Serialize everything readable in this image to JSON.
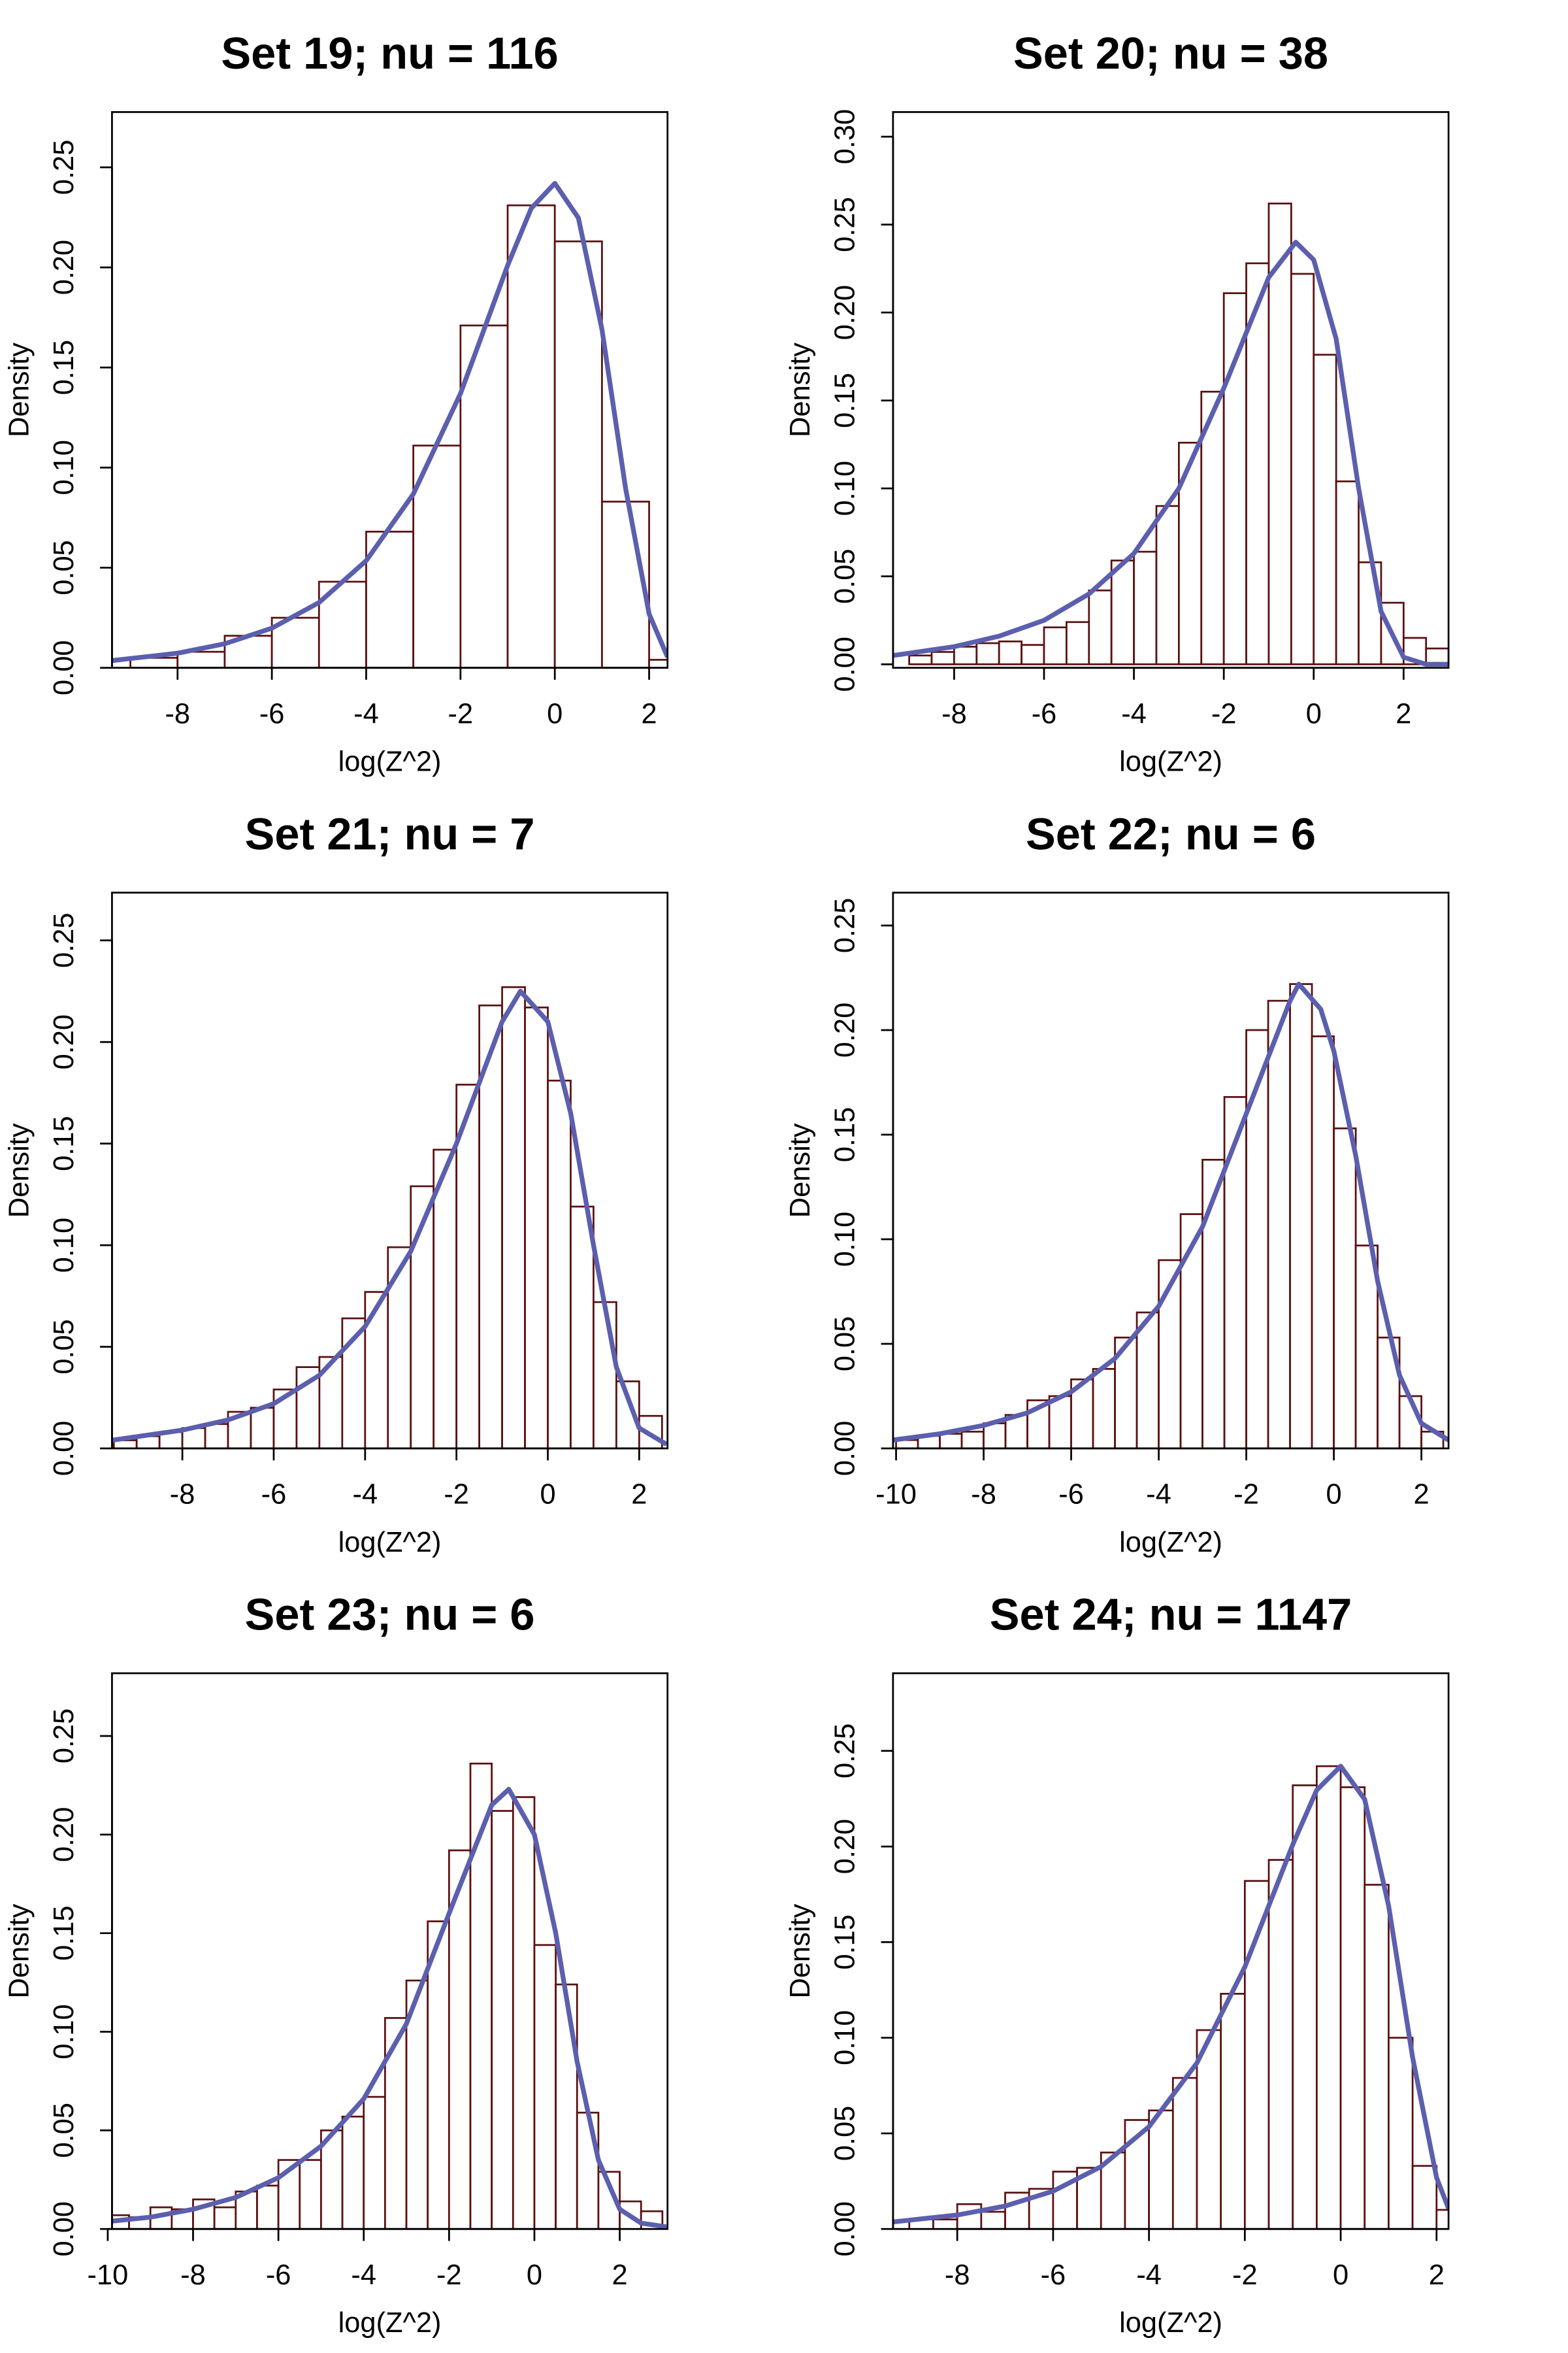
{
  "chart_data": [
    {
      "type": "histogram",
      "title": "Set 19; nu = 116",
      "xlabel": "log(Z^2)",
      "ylabel": "Density",
      "bins": [
        -9,
        -8,
        -7,
        -6,
        -5,
        -4,
        -3,
        -2,
        -1,
        0,
        1,
        2,
        3
      ],
      "counts": [
        0.005,
        0.008,
        0.016,
        0.025,
        0.043,
        0.068,
        0.111,
        0.171,
        0.231,
        0.213,
        0.083,
        0.004
      ],
      "curve": {
        "x": [
          -9.39,
          -8,
          -7,
          -6,
          -5,
          -4,
          -3,
          -2,
          -1,
          -0.5,
          0,
          0.5,
          1,
          1.5,
          2,
          2.39
        ],
        "values": [
          0.0036,
          0.0073,
          0.012,
          0.0198,
          0.0326,
          0.0535,
          0.0868,
          0.137,
          0.201,
          0.2295,
          0.242,
          0.2247,
          0.169,
          0.0898,
          0.0269,
          0.0054
        ]
      },
      "xlim": [
        -9.39,
        2.39
      ],
      "ylim": [
        0,
        0.2776
      ],
      "xticks": [
        -8,
        -6,
        -4,
        -2,
        0,
        2
      ],
      "yticks": [
        {
          "value": 0,
          "label": "0.00"
        },
        {
          "value": 0.05,
          "label": "0.05"
        },
        {
          "value": 0.1,
          "label": "0.10"
        },
        {
          "value": 0.15,
          "label": "0.15"
        },
        {
          "value": 0.2,
          "label": "0.20"
        },
        {
          "value": 0.25,
          "label": "0.25"
        }
      ],
      "bar_color": "#5a1010",
      "line_color": "#5b5fae"
    },
    {
      "type": "histogram",
      "title": "Set 20; nu = 38",
      "xlabel": "log(Z^2)",
      "ylabel": "Density",
      "bins": [
        -9,
        -8.5,
        -8,
        -7.5,
        -7,
        -6.5,
        -6,
        -5.5,
        -5,
        -4.5,
        -4,
        -3.5,
        -3,
        -2.5,
        -2,
        -1.5,
        -1,
        -0.5,
        0,
        0.5,
        1,
        1.5,
        2,
        2.5,
        3
      ],
      "counts": [
        0.005,
        0.007,
        0.01,
        0.012,
        0.013,
        0.011,
        0.021,
        0.024,
        0.042,
        0.059,
        0.064,
        0.09,
        0.126,
        0.155,
        0.211,
        0.228,
        0.262,
        0.222,
        0.176,
        0.104,
        0.058,
        0.035,
        0.015,
        0.009
      ],
      "curve": {
        "x": [
          -9.36,
          -8,
          -7,
          -6,
          -5,
          -4,
          -3,
          -2,
          -1,
          -0.4,
          0,
          0.5,
          1,
          1.5,
          2,
          2.5,
          3
        ],
        "values": [
          0.005,
          0.01,
          0.016,
          0.025,
          0.04,
          0.063,
          0.1,
          0.157,
          0.22,
          0.24,
          0.23,
          0.185,
          0.1,
          0.03,
          0.004,
          0,
          0
        ]
      },
      "xlim": [
        -9.36,
        3.0
      ],
      "ylim": [
        -0.002,
        0.314
      ],
      "xticks": [
        -8,
        -6,
        -4,
        -2,
        0,
        2
      ],
      "yticks": [
        {
          "value": 0,
          "label": "0.00"
        },
        {
          "value": 0.05,
          "label": "0.05"
        },
        {
          "value": 0.1,
          "label": "0.10"
        },
        {
          "value": 0.15,
          "label": "0.15"
        },
        {
          "value": 0.2,
          "label": "0.20"
        },
        {
          "value": 0.25,
          "label": "0.25"
        },
        {
          "value": 0.3,
          "label": "0.30"
        }
      ],
      "bar_color": "#5a1010",
      "line_color": "#5b5fae"
    },
    {
      "type": "histogram",
      "title": "Set 21; nu = 7",
      "xlabel": "log(Z^2)",
      "ylabel": "Density",
      "bins": [
        -9.5,
        -9,
        -8.5,
        -8,
        -7.5,
        -7,
        -6.5,
        -6,
        -5.5,
        -5,
        -4.5,
        -4,
        -3.5,
        -3,
        -2.5,
        -2,
        -1.5,
        -1,
        -0.5,
        0,
        0.5,
        1,
        1.5,
        2,
        2.5
      ],
      "counts": [
        0.004,
        0.006,
        0.008,
        0.01,
        0.012,
        0.018,
        0.02,
        0.029,
        0.04,
        0.045,
        0.064,
        0.077,
        0.099,
        0.129,
        0.147,
        0.179,
        0.218,
        0.227,
        0.217,
        0.181,
        0.119,
        0.072,
        0.033,
        0.016
      ],
      "curve": {
        "x": [
          -9.54,
          -8,
          -7,
          -6,
          -5,
          -4,
          -3,
          -2,
          -1,
          -0.6,
          0,
          0.5,
          1,
          1.5,
          2,
          2.6
        ],
        "values": [
          0.004,
          0.009,
          0.014,
          0.022,
          0.036,
          0.06,
          0.097,
          0.15,
          0.21,
          0.225,
          0.21,
          0.165,
          0.1,
          0.04,
          0.01,
          0.002
        ]
      },
      "xlim": [
        -9.54,
        2.62
      ],
      "ylim": [
        0,
        0.2735
      ],
      "xticks": [
        -8,
        -6,
        -4,
        -2,
        0,
        2
      ],
      "yticks": [
        {
          "value": 0,
          "label": "0.00"
        },
        {
          "value": 0.05,
          "label": "0.05"
        },
        {
          "value": 0.1,
          "label": "0.10"
        },
        {
          "value": 0.15,
          "label": "0.15"
        },
        {
          "value": 0.2,
          "label": "0.20"
        },
        {
          "value": 0.25,
          "label": "0.25"
        }
      ],
      "bar_color": "#5a1010",
      "line_color": "#5b5fae"
    },
    {
      "type": "histogram",
      "title": "Set 22; nu = 6",
      "xlabel": "log(Z^2)",
      "ylabel": "Density",
      "bins": [
        -10,
        -9.5,
        -9,
        -8.5,
        -8,
        -7.5,
        -7,
        -6.5,
        -6,
        -5.5,
        -5,
        -4.5,
        -4,
        -3.5,
        -3,
        -2.5,
        -2,
        -1.5,
        -1,
        -0.5,
        0,
        0.5,
        1,
        1.5,
        2,
        2.5
      ],
      "counts": [
        0.004,
        0.006,
        0.007,
        0.008,
        0.012,
        0.016,
        0.023,
        0.025,
        0.033,
        0.038,
        0.053,
        0.065,
        0.09,
        0.112,
        0.138,
        0.168,
        0.2,
        0.214,
        0.222,
        0.197,
        0.153,
        0.097,
        0.053,
        0.025,
        0.008
      ],
      "curve": {
        "x": [
          -10.07,
          -9,
          -8,
          -7,
          -6,
          -5,
          -4,
          -3,
          -2,
          -1,
          -0.8,
          -0.3,
          0,
          0.5,
          1,
          1.5,
          2,
          2.62
        ],
        "values": [
          0.004,
          0.007,
          0.011,
          0.017,
          0.027,
          0.043,
          0.068,
          0.106,
          0.16,
          0.214,
          0.222,
          0.21,
          0.19,
          0.14,
          0.08,
          0.035,
          0.012,
          0.004
        ]
      },
      "xlim": [
        -10.07,
        2.62
      ],
      "ylim": [
        0,
        0.2657
      ],
      "xticks": [
        -10,
        -8,
        -6,
        -4,
        -2,
        0,
        2
      ],
      "yticks": [
        {
          "value": 0,
          "label": "0.00"
        },
        {
          "value": 0.05,
          "label": "0.05"
        },
        {
          "value": 0.1,
          "label": "0.10"
        },
        {
          "value": 0.15,
          "label": "0.15"
        },
        {
          "value": 0.2,
          "label": "0.20"
        },
        {
          "value": 0.25,
          "label": "0.25"
        }
      ],
      "bar_color": "#5a1010",
      "line_color": "#5b5fae"
    },
    {
      "type": "histogram",
      "title": "Set 23; nu = 6",
      "xlabel": "log(Z^2)",
      "ylabel": "Density",
      "bins": [
        -10,
        -9.5,
        -9,
        -8.5,
        -8,
        -7.5,
        -7,
        -6.5,
        -6,
        -5.5,
        -5,
        -4.5,
        -4,
        -3.5,
        -3,
        -2.5,
        -2,
        -1.5,
        -1,
        -0.5,
        0,
        0.5,
        1,
        1.5,
        2,
        2.5,
        3
      ],
      "counts": [
        0.007,
        0.006,
        0.011,
        0.01,
        0.015,
        0.011,
        0.019,
        0.022,
        0.035,
        0.035,
        0.05,
        0.057,
        0.067,
        0.107,
        0.126,
        0.156,
        0.192,
        0.236,
        0.212,
        0.219,
        0.144,
        0.124,
        0.059,
        0.029,
        0.014,
        0.009
      ],
      "curve": {
        "x": [
          -9.9,
          -9,
          -8,
          -7,
          -6,
          -5,
          -4,
          -3,
          -2,
          -1,
          -0.6,
          0,
          0.5,
          1,
          1.5,
          2,
          2.5,
          3.12
        ],
        "values": [
          0.004,
          0.006,
          0.01,
          0.016,
          0.026,
          0.042,
          0.066,
          0.104,
          0.16,
          0.215,
          0.223,
          0.2,
          0.15,
          0.085,
          0.035,
          0.01,
          0.003,
          0.001
        ]
      },
      "xlim": [
        -9.9,
        3.12
      ],
      "ylim": [
        0,
        0.2818
      ],
      "xticks": [
        -10,
        -8,
        -6,
        -4,
        -2,
        0,
        2
      ],
      "yticks": [
        {
          "value": 0,
          "label": "0.00"
        },
        {
          "value": 0.05,
          "label": "0.05"
        },
        {
          "value": 0.1,
          "label": "0.10"
        },
        {
          "value": 0.15,
          "label": "0.15"
        },
        {
          "value": 0.2,
          "label": "0.20"
        },
        {
          "value": 0.25,
          "label": "0.25"
        }
      ],
      "bar_color": "#5a1010",
      "line_color": "#5b5fae"
    },
    {
      "type": "histogram",
      "title": "Set 24; nu = 1147",
      "xlabel": "log(Z^2)",
      "ylabel": "Density",
      "bins": [
        -9.5,
        -9,
        -8.5,
        -8,
        -7.5,
        -7,
        -6.5,
        -6,
        -5.5,
        -5,
        -4.5,
        -4,
        -3.5,
        -3,
        -2.5,
        -2,
        -1.5,
        -1,
        -0.5,
        0,
        0.5,
        1,
        1.5,
        2,
        2.5
      ],
      "counts": [
        0.004,
        0.005,
        0.005,
        0.013,
        0.009,
        0.019,
        0.021,
        0.03,
        0.032,
        0.04,
        0.057,
        0.062,
        0.079,
        0.104,
        0.123,
        0.182,
        0.193,
        0.232,
        0.242,
        0.231,
        0.18,
        0.1,
        0.033,
        0.01
      ],
      "curve": {
        "x": [
          -9.34,
          -8,
          -7,
          -6,
          -5,
          -4,
          -3,
          -2,
          -1,
          -0.5,
          0,
          0.5,
          1,
          1.5,
          2,
          2.25
        ],
        "values": [
          0.0037,
          0.0073,
          0.012,
          0.0198,
          0.0326,
          0.0535,
          0.0868,
          0.137,
          0.201,
          0.2295,
          0.242,
          0.2247,
          0.169,
          0.0898,
          0.0269,
          0.0107
        ]
      },
      "xlim": [
        -9.34,
        2.25
      ],
      "ylim": [
        0,
        0.2906
      ],
      "xticks": [
        -8,
        -6,
        -4,
        -2,
        0,
        2
      ],
      "yticks": [
        {
          "value": 0,
          "label": "0.00"
        },
        {
          "value": 0.05,
          "label": "0.05"
        },
        {
          "value": 0.1,
          "label": "0.10"
        },
        {
          "value": 0.15,
          "label": "0.15"
        },
        {
          "value": 0.2,
          "label": "0.20"
        },
        {
          "value": 0.25,
          "label": "0.25"
        }
      ],
      "bar_color": "#5a1010",
      "line_color": "#5b5fae"
    }
  ]
}
